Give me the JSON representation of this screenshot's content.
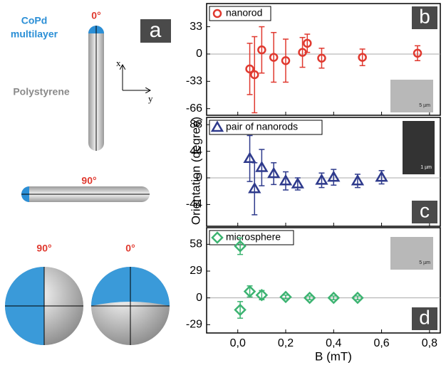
{
  "chart_data": [
    {
      "type": "scatter",
      "xlim": [
        -0.13,
        0.845
      ],
      "ylim": [
        -74,
        61
      ],
      "yticks": [
        -66,
        -33,
        0,
        33
      ],
      "panel_label": "b",
      "inset_scale": "5 µm",
      "series": [
        {
          "name": "nanorod",
          "color": "#e0392f",
          "marker": "circle",
          "x": [
            0.05,
            0.07,
            0.1,
            0.15,
            0.2,
            0.27,
            0.29,
            0.35,
            0.52,
            0.75
          ],
          "values": [
            -18,
            -25,
            5,
            -4,
            -8,
            2,
            13,
            -5,
            -4,
            1
          ],
          "errors": [
            31,
            46,
            28,
            30,
            26,
            18,
            11,
            12,
            10,
            9
          ]
        }
      ]
    },
    {
      "type": "scatter",
      "xlim": [
        -0.13,
        0.845
      ],
      "ylim": [
        -80,
        100
      ],
      "yticks": [
        -44,
        0,
        44,
        88
      ],
      "panel_label": "c",
      "inset_scale": "1 µm",
      "series": [
        {
          "name": "pair of nanorods",
          "color": "#2e3a8c",
          "marker": "triangle",
          "x": [
            0.05,
            0.07,
            0.1,
            0.15,
            0.2,
            0.25,
            0.35,
            0.4,
            0.5,
            0.6
          ],
          "values": [
            32,
            -18,
            17,
            7,
            -5,
            -10,
            -4,
            1,
            -5,
            1
          ],
          "errors": [
            38,
            43,
            30,
            18,
            15,
            10,
            12,
            13,
            11,
            11
          ]
        }
      ]
    },
    {
      "type": "scatter",
      "xlim": [
        -0.13,
        0.845
      ],
      "ylim": [
        -38,
        76
      ],
      "yticks": [
        -29,
        0,
        29,
        58
      ],
      "panel_label": "d",
      "inset_scale": "5 µm",
      "xticks": [
        {
          "value": 0,
          "label": "0,0"
        },
        {
          "value": 0.2,
          "label": "0,2"
        },
        {
          "value": 0.4,
          "label": "0,4"
        },
        {
          "value": 0.6,
          "label": "0,6"
        },
        {
          "value": 0.8,
          "label": "0,8"
        }
      ],
      "series": [
        {
          "name": "microsphere",
          "color": "#3cb371",
          "marker": "diamond",
          "x": [
            0.01,
            0.01,
            0.05,
            0.1,
            0.2,
            0.3,
            0.4,
            0.5
          ],
          "values": [
            56,
            -13,
            7,
            3,
            1,
            0,
            0,
            0
          ],
          "errors": [
            9,
            9,
            6,
            5,
            2,
            2,
            2,
            2
          ]
        }
      ]
    }
  ],
  "xlabel": "B (mT)",
  "ylabel": "Orientation (degree)",
  "panel_a": {
    "label": "a",
    "coating": [
      "CoPd",
      "multilayer"
    ],
    "core": "Polystyrene",
    "rod_angles": [
      "0°",
      "90°"
    ],
    "sphere_angles": [
      "90°",
      "0°"
    ],
    "axes": [
      "x",
      "y"
    ]
  }
}
